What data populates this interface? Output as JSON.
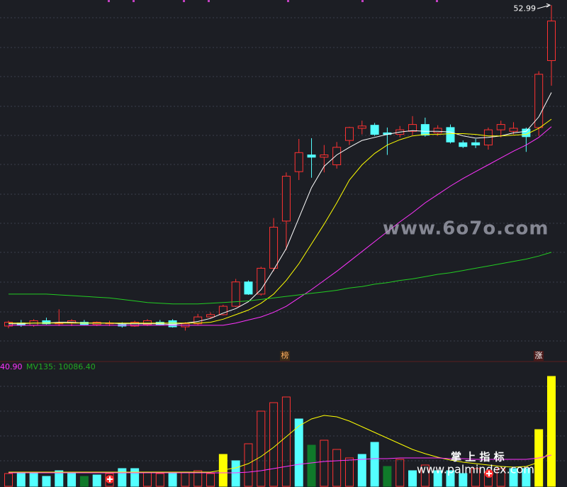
{
  "chart_data": {
    "type": "candlestick",
    "up_color": "#ff3232",
    "down_color": "#54ffff",
    "ylim": [
      8,
      53.2
    ],
    "ohlc": [
      [
        10.8,
        11.5,
        10.5,
        11.3
      ],
      [
        11.2,
        11.6,
        10.7,
        10.9
      ],
      [
        10.9,
        11.7,
        10.7,
        11.5
      ],
      [
        11.5,
        11.9,
        11.0,
        11.1
      ],
      [
        11.1,
        13.0,
        10.8,
        11.2
      ],
      [
        11.2,
        11.7,
        10.8,
        11.5
      ],
      [
        11.3,
        11.6,
        10.9,
        11.0
      ],
      [
        11.0,
        11.4,
        10.8,
        11.3
      ],
      [
        11.1,
        11.5,
        10.8,
        11.2
      ],
      [
        11.0,
        11.3,
        10.6,
        10.8
      ],
      [
        10.8,
        11.5,
        10.7,
        11.3
      ],
      [
        11.0,
        11.7,
        10.8,
        11.5
      ],
      [
        11.3,
        11.6,
        10.9,
        11.0
      ],
      [
        11.5,
        11.7,
        10.6,
        10.7
      ],
      [
        10.7,
        11.3,
        10.2,
        11.1
      ],
      [
        11.1,
        12.4,
        10.9,
        12.0
      ],
      [
        12.0,
        12.6,
        11.8,
        12.3
      ],
      [
        12.3,
        13.6,
        12.2,
        13.4
      ],
      [
        13.4,
        17.0,
        13.3,
        16.6
      ],
      [
        16.6,
        16.8,
        14.9,
        15.0
      ],
      [
        15.0,
        18.6,
        14.8,
        18.4
      ],
      [
        18.4,
        25.0,
        18.0,
        23.8
      ],
      [
        24.6,
        31.0,
        20.8,
        30.5
      ],
      [
        31.1,
        35.4,
        30.0,
        33.6
      ],
      [
        33.3,
        35.5,
        30.3,
        33.0
      ],
      [
        33.0,
        34.6,
        31.0,
        33.3
      ],
      [
        32.0,
        35.0,
        31.5,
        34.3
      ],
      [
        35.2,
        37.0,
        34.6,
        36.9
      ],
      [
        36.8,
        37.8,
        36.0,
        37.1
      ],
      [
        37.2,
        37.5,
        35.8,
        36.0
      ],
      [
        36.2,
        36.9,
        33.3,
        36.0
      ],
      [
        36.0,
        37.1,
        35.6,
        36.6
      ],
      [
        36.4,
        38.4,
        35.9,
        37.3
      ],
      [
        37.3,
        38.2,
        35.7,
        35.9
      ],
      [
        36.2,
        37.2,
        35.8,
        36.8
      ],
      [
        36.9,
        37.3,
        34.8,
        35.0
      ],
      [
        34.9,
        35.2,
        34.2,
        34.4
      ],
      [
        34.9,
        35.4,
        34.2,
        34.6
      ],
      [
        34.6,
        36.9,
        34.0,
        36.6
      ],
      [
        36.6,
        37.8,
        35.6,
        37.3
      ],
      [
        36.4,
        37.6,
        36.0,
        36.8
      ],
      [
        36.7,
        36.9,
        33.7,
        35.7
      ],
      [
        36.9,
        44.3,
        35.8,
        43.9
      ],
      [
        45.7,
        52.99,
        42.4,
        50.9
      ]
    ],
    "moving_averages": [
      {
        "color": "#ffffff",
        "values": [
          11.1,
          11.1,
          11.2,
          11.2,
          11.3,
          11.3,
          11.2,
          11.2,
          11.2,
          11.1,
          11.1,
          11.1,
          11.1,
          11.0,
          11.2,
          11.4,
          11.8,
          12.5,
          13.1,
          14.0,
          15.6,
          18.2,
          21.0,
          25.0,
          29.0,
          31.8,
          33.3,
          34.3,
          35.2,
          35.6,
          36.0,
          36.3,
          36.5,
          36.4,
          36.4,
          36.3,
          35.8,
          35.5,
          35.6,
          35.8,
          36.2,
          36.4,
          38.3,
          41.5
        ]
      },
      {
        "color": "#ffff00",
        "values": [
          11.2,
          11.2,
          11.2,
          11.2,
          11.2,
          11.2,
          11.2,
          11.2,
          11.2,
          11.2,
          11.2,
          11.2,
          11.2,
          11.2,
          11.2,
          11.2,
          11.3,
          11.7,
          12.3,
          12.9,
          13.8,
          15.0,
          16.8,
          19.0,
          21.6,
          24.2,
          27.0,
          30.0,
          32.0,
          33.5,
          34.6,
          35.3,
          35.8,
          36.0,
          36.0,
          36.1,
          36.1,
          36.0,
          35.8,
          35.8,
          35.9,
          36.0,
          36.8,
          38.0
        ]
      },
      {
        "color": "#ff33ff",
        "values": [
          10.9,
          10.9,
          10.9,
          10.9,
          10.9,
          10.9,
          10.9,
          10.9,
          10.9,
          10.9,
          10.9,
          10.9,
          10.9,
          10.9,
          10.9,
          10.9,
          10.9,
          10.9,
          11.2,
          11.6,
          12.0,
          12.6,
          13.4,
          14.5,
          15.6,
          16.8,
          18.0,
          19.3,
          20.6,
          21.9,
          23.2,
          24.5,
          25.7,
          27.0,
          28.1,
          29.2,
          30.2,
          31.1,
          32.0,
          32.9,
          33.8,
          34.6,
          35.6,
          37.0
        ]
      },
      {
        "color": "#22cc22",
        "values": [
          15.0,
          15.0,
          15.0,
          15.0,
          14.9,
          14.8,
          14.7,
          14.6,
          14.5,
          14.3,
          14.1,
          13.9,
          13.8,
          13.7,
          13.7,
          13.7,
          13.8,
          13.9,
          14.0,
          14.1,
          14.3,
          14.5,
          14.7,
          14.9,
          15.1,
          15.3,
          15.5,
          15.8,
          16.0,
          16.3,
          16.5,
          16.8,
          17.0,
          17.3,
          17.6,
          17.8,
          18.1,
          18.4,
          18.7,
          19.0,
          19.3,
          19.6,
          20.0,
          20.5
        ]
      }
    ],
    "volume": {
      "ylim": [
        0,
        160
      ],
      "values": [
        18,
        18,
        20,
        14,
        22,
        20,
        14,
        16,
        18,
        25,
        25,
        20,
        18,
        18,
        20,
        22,
        18,
        45,
        36,
        60,
        106,
        118,
        126,
        95,
        58,
        65,
        52,
        40,
        45,
        62,
        28,
        38,
        22,
        30,
        22,
        22,
        18,
        25,
        20,
        25,
        25,
        25,
        80,
        155
      ],
      "colors": [
        "#ff3232",
        "#54ffff",
        "#54ffff",
        "#54ffff",
        "#54ffff",
        "#54ffff",
        "#107a2a",
        "#54ffff",
        "#ff3232",
        "#54ffff",
        "#54ffff",
        "#ff3232",
        "#ff3232",
        "#54ffff",
        "#ff3232",
        "#ff3232",
        "#ff3232",
        "#ffff00",
        "#54ffff",
        "#ff3232",
        "#ff3232",
        "#ff3232",
        "#ff3232",
        "#54ffff",
        "#107a2a",
        "#ff3232",
        "#ff3232",
        "#ff3232",
        "#54ffff",
        "#54ffff",
        "#107a2a",
        "#ff3232",
        "#54ffff",
        "#ff3232",
        "#54ffff",
        "#54ffff",
        "#54ffff",
        "#ff3232",
        "#ff3232",
        "#ff3232",
        "#54ffff",
        "#54ffff",
        "#ffff00",
        "#ffff00"
      ],
      "moving_averages": [
        {
          "color": "#ffff00",
          "values": [
            20,
            20,
            20,
            20,
            20,
            20,
            20,
            20,
            20,
            20,
            20,
            20,
            20,
            20,
            20,
            20,
            20,
            23,
            26,
            32,
            42,
            55,
            70,
            85,
            95,
            100,
            98,
            92,
            84,
            76,
            68,
            60,
            52,
            46,
            41,
            37,
            34,
            32,
            30,
            28,
            27,
            28,
            34,
            50
          ]
        },
        {
          "color": "#ff33ff",
          "values": [
            19,
            19,
            19,
            19,
            19,
            19,
            19,
            19,
            19,
            19,
            19,
            19,
            19,
            19,
            19,
            19,
            19,
            19,
            19,
            20,
            22,
            25,
            28,
            31,
            33,
            35,
            36,
            37,
            38,
            39,
            39,
            40,
            40,
            40,
            40,
            39,
            39,
            38,
            38,
            38,
            38,
            38,
            40,
            44
          ]
        }
      ],
      "header_left": "40.90",
      "header_mv": "MV135: 10086.40"
    },
    "markers": [
      "榜",
      "涨"
    ],
    "watermarks": [
      "www.6o7o.com",
      "掌 上 指 标",
      "www.palmindex.com"
    ]
  }
}
